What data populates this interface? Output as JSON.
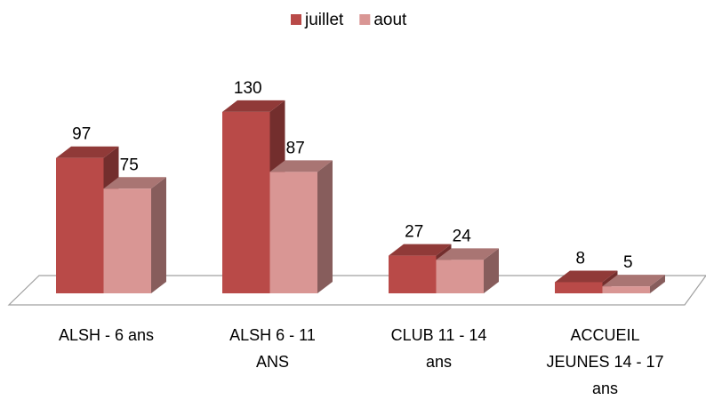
{
  "chart_data": {
    "type": "bar3d",
    "categories": [
      "ALSH - 6 ans",
      "ALSH 6 - 11 ANS",
      "CLUB 11 - 14 ans",
      "ACCUEIL JEUNES 14 - 17 ans"
    ],
    "series": [
      {
        "name": "juillet",
        "color": "#b94a48",
        "values": [
          97,
          130,
          27,
          8
        ]
      },
      {
        "name": "aout",
        "color": "#d99694",
        "values": [
          75,
          87,
          24,
          5
        ]
      }
    ],
    "legend": "top"
  }
}
